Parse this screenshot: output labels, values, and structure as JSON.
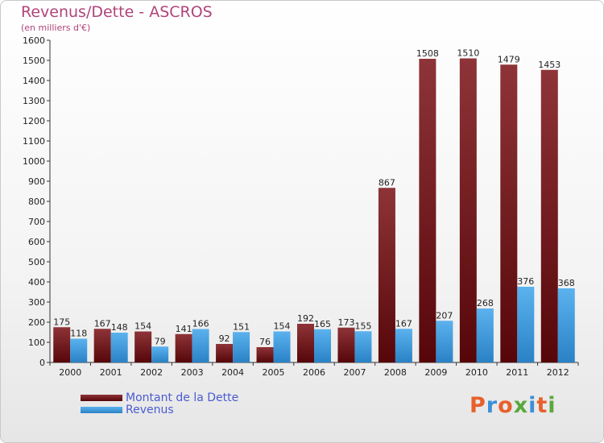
{
  "chart_data": {
    "type": "bar",
    "title": "Revenus/Dette - ASCROS",
    "subtitle": "(en milliers d'€)",
    "categories": [
      "2000",
      "2001",
      "2002",
      "2003",
      "2004",
      "2005",
      "2006",
      "2007",
      "2008",
      "2009",
      "2010",
      "2011",
      "2012"
    ],
    "series": [
      {
        "name": "Montant de la Dette",
        "color": "#7a1a1e",
        "values": [
          175,
          167,
          154,
          141,
          92,
          76,
          192,
          173,
          867,
          1508,
          1510,
          1479,
          1453
        ]
      },
      {
        "name": "Revenus",
        "color": "#3d9de0",
        "values": [
          118,
          148,
          79,
          166,
          151,
          154,
          165,
          155,
          167,
          207,
          268,
          376,
          368
        ]
      }
    ],
    "ylim": [
      0,
      1600
    ],
    "yticks": [
      0,
      100,
      200,
      300,
      400,
      500,
      600,
      700,
      800,
      900,
      1000,
      1100,
      1200,
      1300,
      1400,
      1500,
      1600
    ],
    "grid": false,
    "legend_position": "bottom-left"
  },
  "logo": {
    "text": "Proxiti",
    "colors": [
      "#e8602c",
      "#3d8fd6",
      "#e8602c",
      "#5aa83c",
      "#3d8fd6",
      "#e8602c",
      "#5aa83c"
    ]
  }
}
